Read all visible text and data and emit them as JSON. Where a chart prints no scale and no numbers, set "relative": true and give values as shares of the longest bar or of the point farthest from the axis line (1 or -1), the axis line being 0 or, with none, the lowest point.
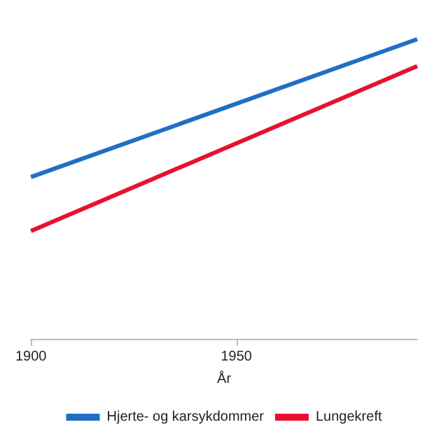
{
  "chart_data": {
    "type": "line",
    "xlabel": "År",
    "relative": true,
    "x": [
      1900,
      1994
    ],
    "xlim": [
      1900,
      1994
    ],
    "xticks": [
      1900,
      1950
    ],
    "series": [
      {
        "name": "Hjerte- og karsykdommer",
        "color": "#1f6fc5",
        "values": [
          0.54,
          1
        ]
      },
      {
        "name": "Lungekreft",
        "color": "#e8112d",
        "values": [
          0.36,
          0.91
        ]
      }
    ],
    "legend": "bottom",
    "grid": false,
    "marker": "none",
    "line_style": "solid"
  }
}
